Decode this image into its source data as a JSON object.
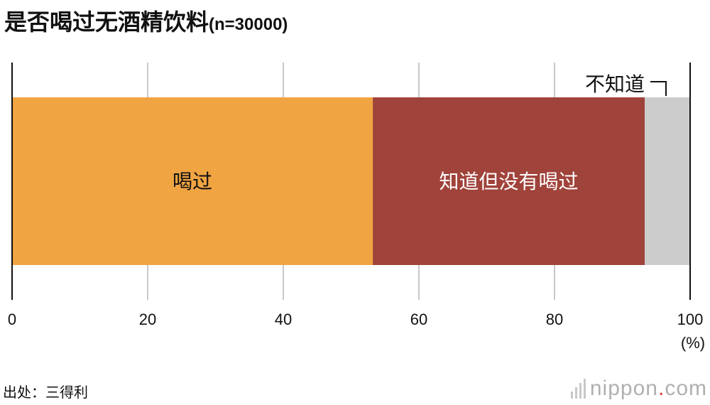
{
  "title": "是否喝过无酒精饮料",
  "sample_note": "(n=30000)",
  "source": "出处：三得利",
  "logo": {
    "main": "nippon",
    "dot": ".",
    "tld": "com"
  },
  "colors": {
    "drank": "#f0a442",
    "aware": "#a0433b",
    "unknown": "#cccccc",
    "grid": "#c8c8c8",
    "axis": "#111111",
    "logo_dot": "#e0362e"
  },
  "chart_data": {
    "type": "bar",
    "orientation": "horizontal-stacked",
    "xlim": [
      0,
      100
    ],
    "ticks": [
      0,
      20,
      40,
      60,
      80,
      100
    ],
    "unit": "(%)",
    "segments": [
      {
        "label": "喝过",
        "value": 53.2,
        "color": "#f0a442",
        "text_color": "#111111"
      },
      {
        "label": "知道但没有喝过",
        "value": 40.1,
        "color": "#a0433b",
        "text_color": "#ffffff"
      },
      {
        "label": "不知道",
        "value": 6.7,
        "color": "#cccccc",
        "text_color": "#111111"
      }
    ]
  }
}
